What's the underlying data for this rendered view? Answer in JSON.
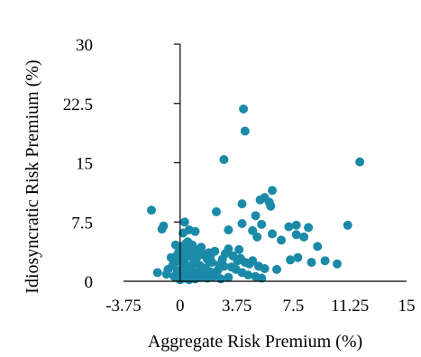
{
  "chart_data": {
    "type": "scatter",
    "title": "",
    "xlabel": "Aggregate Risk Premium (%)",
    "ylabel": "Idiosyncratic Risk Premium (%)",
    "xlim": [
      -3.75,
      15
    ],
    "ylim": [
      0,
      30
    ],
    "x_ticks": [
      "-3.75",
      "0",
      "3.75",
      "7.5",
      "11.25",
      "15"
    ],
    "y_ticks": [
      "0",
      "7.5",
      "15",
      "22.5",
      "30"
    ],
    "grid": false,
    "legend": "none",
    "marker_color": "#1a8aa8",
    "points": [
      [
        4.2,
        21.8
      ],
      [
        4.3,
        19.0
      ],
      [
        2.9,
        15.4
      ],
      [
        11.9,
        15.1
      ],
      [
        6.1,
        11.5
      ],
      [
        5.6,
        10.6
      ],
      [
        5.3,
        10.3
      ],
      [
        5.9,
        10.0
      ],
      [
        6.0,
        9.5
      ],
      [
        4.1,
        9.8
      ],
      [
        -1.9,
        9.0
      ],
      [
        2.4,
        8.8
      ],
      [
        5.0,
        8.3
      ],
      [
        0.3,
        7.5
      ],
      [
        -1.1,
        7.0
      ],
      [
        -1.2,
        6.6
      ],
      [
        4.1,
        7.3
      ],
      [
        5.4,
        7.2
      ],
      [
        7.2,
        6.9
      ],
      [
        7.7,
        7.1
      ],
      [
        8.5,
        6.8
      ],
      [
        11.1,
        7.1
      ],
      [
        0.6,
        6.5
      ],
      [
        1.0,
        6.3
      ],
      [
        3.2,
        6.5
      ],
      [
        4.8,
        6.4
      ],
      [
        6.1,
        6.0
      ],
      [
        7.7,
        5.9
      ],
      [
        8.2,
        5.6
      ],
      [
        5.1,
        5.6
      ],
      [
        6.7,
        5.2
      ],
      [
        9.1,
        4.4
      ],
      [
        3.9,
        4.0
      ],
      [
        3.2,
        4.1
      ],
      [
        0.2,
        6.1
      ],
      [
        0.5,
        5.0
      ],
      [
        7.8,
        3.0
      ],
      [
        7.3,
        2.7
      ],
      [
        8.7,
        2.4
      ],
      [
        9.6,
        2.6
      ],
      [
        10.4,
        2.2
      ],
      [
        5.2,
        1.9
      ],
      [
        5.6,
        1.6
      ],
      [
        6.4,
        1.5
      ],
      [
        -1.5,
        1.1
      ],
      [
        -0.2,
        1.2
      ],
      [
        0.0,
        0.2
      ],
      [
        0.3,
        0.4
      ],
      [
        0.6,
        0.2
      ],
      [
        1.0,
        0.3
      ],
      [
        1.4,
        0.5
      ],
      [
        1.8,
        0.4
      ],
      [
        2.2,
        0.6
      ],
      [
        2.7,
        0.3
      ],
      [
        3.2,
        0.5
      ],
      [
        0.1,
        0.8
      ],
      [
        0.4,
        1.0
      ],
      [
        0.8,
        1.3
      ],
      [
        1.2,
        1.1
      ],
      [
        1.6,
        0.9
      ],
      [
        2.0,
        1.2
      ],
      [
        2.5,
        1.4
      ],
      [
        0.2,
        1.6
      ],
      [
        0.5,
        1.9
      ],
      [
        0.9,
        2.2
      ],
      [
        1.3,
        2.0
      ],
      [
        1.7,
        1.7
      ],
      [
        2.1,
        2.4
      ],
      [
        0.0,
        2.6
      ],
      [
        0.3,
        2.9
      ],
      [
        0.7,
        3.2
      ],
      [
        1.1,
        3.0
      ],
      [
        1.5,
        3.4
      ],
      [
        -0.1,
        3.6
      ],
      [
        0.2,
        3.9
      ],
      [
        0.6,
        4.2
      ],
      [
        1.0,
        4.0
      ],
      [
        -0.3,
        4.6
      ],
      [
        0.1,
        4.4
      ],
      [
        0.4,
        4.8
      ],
      [
        -0.5,
        2.0
      ],
      [
        -0.8,
        1.5
      ],
      [
        -0.6,
        3.0
      ],
      [
        -0.2,
        3.3
      ],
      [
        2.8,
        2.8
      ],
      [
        3.0,
        3.5
      ],
      [
        3.5,
        3.2
      ],
      [
        3.8,
        2.6
      ],
      [
        4.0,
        2.9
      ],
      [
        4.3,
        2.4
      ],
      [
        4.6,
        2.2
      ],
      [
        4.8,
        2.6
      ],
      [
        3.4,
        1.8
      ],
      [
        3.7,
        1.5
      ],
      [
        4.1,
        1.1
      ],
      [
        4.5,
        0.8
      ],
      [
        5.0,
        0.6
      ],
      [
        5.4,
        0.4
      ],
      [
        2.6,
        2.1
      ],
      [
        2.9,
        1.9
      ],
      [
        -0.4,
        0.6
      ],
      [
        -0.9,
        0.9
      ],
      [
        1.9,
        3.6
      ],
      [
        2.3,
        3.8
      ],
      [
        1.4,
        4.3
      ],
      [
        0.8,
        4.6
      ],
      [
        0.0,
        1.4
      ],
      [
        0.6,
        0.7
      ],
      [
        1.1,
        0.6
      ],
      [
        1.5,
        1.6
      ],
      [
        2.4,
        1.0
      ],
      [
        0.3,
        2.3
      ],
      [
        0.9,
        2.7
      ],
      [
        1.8,
        2.8
      ],
      [
        -0.3,
        2.4
      ],
      [
        0.5,
        3.5
      ],
      [
        1.2,
        3.7
      ],
      [
        2.0,
        3.1
      ]
    ]
  }
}
